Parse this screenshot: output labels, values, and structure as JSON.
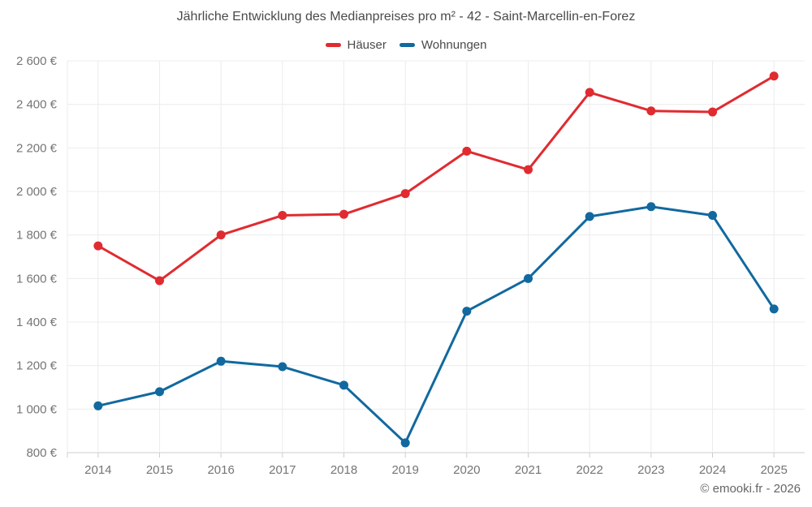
{
  "chart_data": {
    "type": "line",
    "title": "Jährliche Entwicklung des Medianpreises pro m² - 42 - Saint-Marcellin-en-Forez",
    "categories": [
      "2014",
      "2015",
      "2016",
      "2017",
      "2018",
      "2019",
      "2020",
      "2021",
      "2022",
      "2023",
      "2024",
      "2025"
    ],
    "series": [
      {
        "name": "Häuser",
        "color": "#e02b30",
        "values": [
          1750,
          1590,
          1800,
          1890,
          1895,
          1990,
          2185,
          2100,
          2455,
          2370,
          2365,
          2530
        ]
      },
      {
        "name": "Wohnungen",
        "color": "#11699f",
        "values": [
          1015,
          1080,
          1220,
          1195,
          1110,
          845,
          1450,
          1600,
          1885,
          1930,
          1890,
          1460
        ]
      }
    ],
    "ylim": [
      800,
      2600
    ],
    "ytick_step": 200,
    "ytick_labels": [
      "800 €",
      "1 000 €",
      "1 200 €",
      "1 400 €",
      "1 600 €",
      "1 800 €",
      "2 000 €",
      "2 200 €",
      "2 400 €",
      "2 600 €"
    ],
    "xlabel": "",
    "ylabel": "",
    "grid": true,
    "legend_position": "top",
    "colors": {
      "grid": "#ececec",
      "axis": "#cccccc",
      "tick_text": "#757575",
      "title_text": "#4a4a4a"
    }
  },
  "footer": {
    "credit": "© emooki.fr - 2026"
  }
}
